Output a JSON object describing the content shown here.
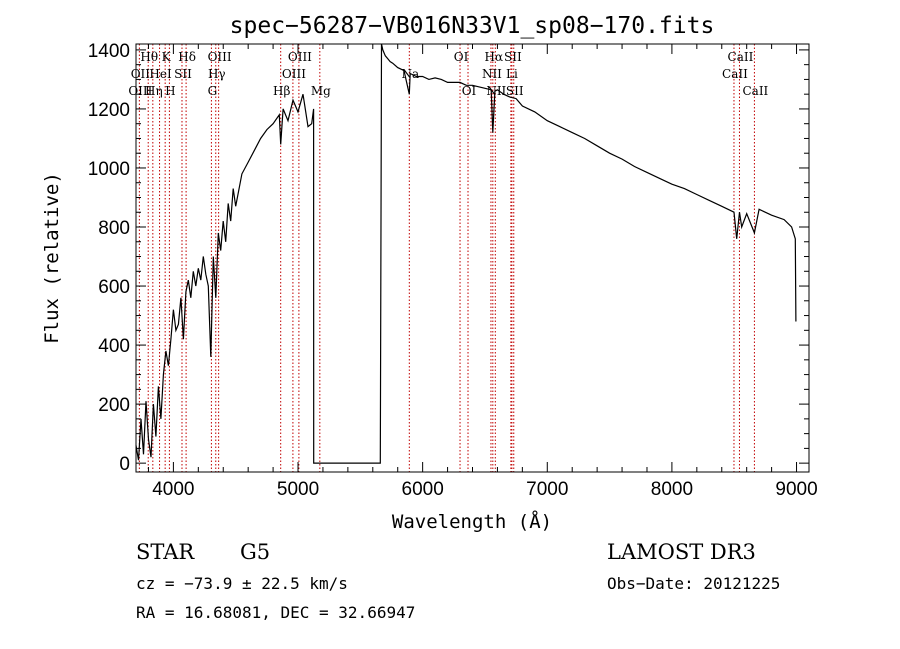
{
  "chart_data": {
    "type": "line",
    "title": "spec−56287−VB016N33V1_sp08−170.fits",
    "xlabel": "Wavelength (Å)",
    "ylabel": "Flux (relative)",
    "xlim": [
      3700,
      9100
    ],
    "ylim": [
      -30,
      1420
    ],
    "xticks": [
      4000,
      5000,
      6000,
      7000,
      8000,
      9000
    ],
    "yticks": [
      0,
      200,
      400,
      600,
      800,
      1000,
      1200,
      1400
    ],
    "grid": false,
    "spectrum": {
      "x": [
        3700,
        3720,
        3740,
        3760,
        3780,
        3800,
        3820,
        3840,
        3860,
        3880,
        3900,
        3920,
        3940,
        3960,
        3980,
        4000,
        4020,
        4040,
        4060,
        4080,
        4100,
        4120,
        4140,
        4160,
        4180,
        4200,
        4220,
        4240,
        4260,
        4280,
        4300,
        4320,
        4340,
        4360,
        4380,
        4400,
        4420,
        4440,
        4460,
        4480,
        4500,
        4550,
        4600,
        4650,
        4700,
        4750,
        4800,
        4850,
        4861,
        4880,
        4920,
        4960,
        5000,
        5040,
        5080,
        5110,
        5125,
        5126,
        5130,
        5200,
        5300,
        5400,
        5500,
        5600,
        5660,
        5670,
        5680,
        5700,
        5720,
        5740,
        5760,
        5800,
        5850,
        5893,
        5900,
        5950,
        6000,
        6050,
        6100,
        6150,
        6200,
        6250,
        6300,
        6350,
        6400,
        6450,
        6500,
        6550,
        6563,
        6580,
        6600,
        6650,
        6700,
        6750,
        6800,
        6900,
        7000,
        7100,
        7200,
        7300,
        7400,
        7500,
        7600,
        7700,
        7800,
        7900,
        8000,
        8100,
        8200,
        8300,
        8400,
        8498,
        8520,
        8542,
        8560,
        8600,
        8662,
        8700,
        8800,
        8900,
        8960,
        8990,
        8995
      ],
      "flux": [
        60,
        10,
        150,
        30,
        210,
        80,
        20,
        200,
        90,
        260,
        150,
        300,
        380,
        330,
        420,
        520,
        450,
        470,
        560,
        420,
        580,
        620,
        560,
        650,
        600,
        660,
        620,
        700,
        640,
        600,
        360,
        700,
        560,
        780,
        720,
        820,
        750,
        880,
        820,
        930,
        870,
        980,
        1020,
        1060,
        1100,
        1130,
        1150,
        1180,
        1080,
        1200,
        1160,
        1230,
        1190,
        1250,
        1140,
        1150,
        1200,
        0,
        0,
        0,
        0,
        0,
        0,
        0,
        0,
        1420,
        1400,
        1380,
        1370,
        1360,
        1355,
        1340,
        1330,
        1250,
        1320,
        1310,
        1310,
        1300,
        1305,
        1300,
        1290,
        1290,
        1290,
        1280,
        1280,
        1275,
        1270,
        1265,
        1120,
        1260,
        1265,
        1250,
        1240,
        1235,
        1210,
        1190,
        1160,
        1140,
        1120,
        1100,
        1075,
        1050,
        1030,
        1005,
        985,
        965,
        945,
        930,
        910,
        890,
        870,
        850,
        760,
        850,
        800,
        845,
        780,
        860,
        840,
        825,
        800,
        760,
        480
      ]
    },
    "annotations": [
      {
        "label": "Hθ",
        "x": 3798,
        "row": 1
      },
      {
        "label": "OII",
        "x": 3727,
        "row": 2
      },
      {
        "label": "OIII",
        "x": 3727,
        "row": 3
      },
      {
        "label": "K",
        "x": 3934,
        "row": 1
      },
      {
        "label": "HeI",
        "x": 3889,
        "row": 2
      },
      {
        "label": "Hη",
        "x": 3835,
        "row": 3
      },
      {
        "label": "SII",
        "x": 4069,
        "row": 2
      },
      {
        "label": "H",
        "x": 3968,
        "row": 3
      },
      {
        "label": "Hδ",
        "x": 4102,
        "row": 1
      },
      {
        "label": "OIII",
        "x": 4363,
        "row": 1
      },
      {
        "label": "Hγ",
        "x": 4340,
        "row": 2
      },
      {
        "label": "G",
        "x": 4305,
        "row": 3
      },
      {
        "label": "OIII",
        "x": 5007,
        "row": 1
      },
      {
        "label": "OIII",
        "x": 4959,
        "row": 2
      },
      {
        "label": "Hβ",
        "x": 4861,
        "row": 3
      },
      {
        "label": "Mg",
        "x": 5175,
        "row": 3
      },
      {
        "label": "Na",
        "x": 5893,
        "row": 2
      },
      {
        "label": "OI",
        "x": 6300,
        "row": 1
      },
      {
        "label": "OI",
        "x": 6364,
        "row": 3
      },
      {
        "label": "Hα",
        "x": 6563,
        "row": 1
      },
      {
        "label": "SII",
        "x": 6716,
        "row": 1
      },
      {
        "label": "NII",
        "x": 6548,
        "row": 2
      },
      {
        "label": "Li",
        "x": 6708,
        "row": 2
      },
      {
        "label": "NII",
        "x": 6583,
        "row": 3
      },
      {
        "label": "SII",
        "x": 6731,
        "row": 3
      },
      {
        "label": "CaII",
        "x": 8542,
        "row": 1
      },
      {
        "label": "CaII",
        "x": 8498,
        "row": 2
      },
      {
        "label": "CaII",
        "x": 8662,
        "row": 3
      }
    ]
  },
  "info": {
    "object_type": "STAR",
    "subclass": "G5",
    "survey": "LAMOST DR3",
    "redshift": "cz = −73.9 ± 22.5 km/s",
    "obs_date": "Obs−Date: 20121225",
    "coords": "RA =  16.68081, DEC =  32.66947"
  },
  "colors": {
    "spectrum": "#000000",
    "line_marker": "#c00000",
    "axis": "#000000",
    "background": "#ffffff"
  }
}
